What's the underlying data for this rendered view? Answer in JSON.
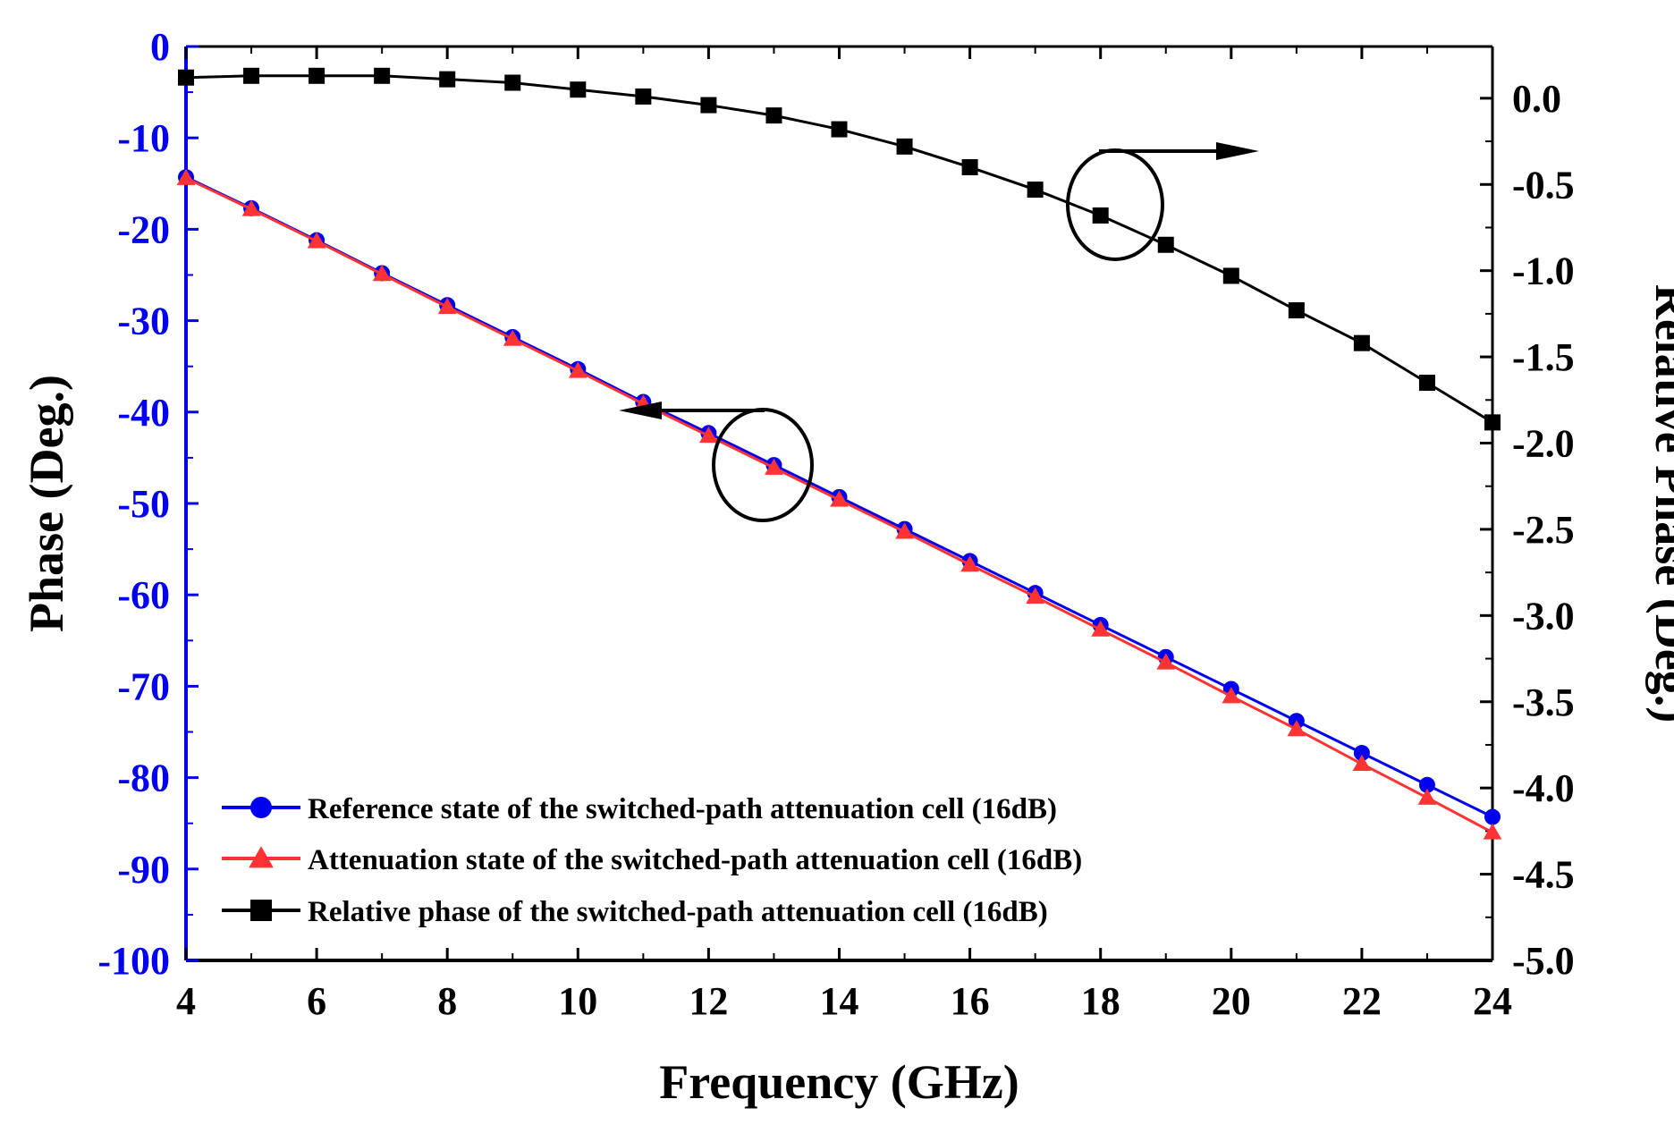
{
  "chart_data": {
    "type": "line",
    "title": "",
    "xlabel": "Frequency (GHz)",
    "ylabel_left": "Phase (Deg.)",
    "ylabel_right": "Relative Phase (Deg.)",
    "xlim": [
      4,
      24
    ],
    "ylim_left": [
      -100,
      0
    ],
    "ylim_right": [
      -5.0,
      0.3
    ],
    "x_ticks": [
      "4",
      "6",
      "8",
      "10",
      "12",
      "14",
      "16",
      "18",
      "20",
      "22",
      "24"
    ],
    "y_left_ticks": [
      "0",
      "-10",
      "-20",
      "-30",
      "-40",
      "-50",
      "-60",
      "-70",
      "-80",
      "-90",
      "-100"
    ],
    "y_right_ticks": [
      "0.0",
      "-0.5",
      "-1.0",
      "-1.5",
      "-2.0",
      "-2.5",
      "-3.0",
      "-3.5",
      "-4.0",
      "-4.5",
      "-5.0"
    ],
    "grid": false,
    "legend_position": "bottom-left",
    "x": [
      4,
      5,
      6,
      7,
      8,
      9,
      10,
      11,
      12,
      13,
      14,
      15,
      16,
      17,
      18,
      19,
      20,
      21,
      22,
      23,
      24
    ],
    "series": [
      {
        "name": "Reference state of the switched-path attenuation cell (16dB)",
        "axis": "left",
        "color": "#0000ee",
        "marker": "circle",
        "values": [
          -14.3,
          -17.7,
          -21.2,
          -24.8,
          -28.3,
          -31.8,
          -35.3,
          -38.9,
          -42.3,
          -45.8,
          -49.3,
          -52.8,
          -56.3,
          -59.8,
          -63.3,
          -66.8,
          -70.3,
          -73.8,
          -77.3,
          -80.8,
          -84.3
        ]
      },
      {
        "name": "Attenuation state of the switched-path attenuation cell (16dB)",
        "axis": "left",
        "color": "#ff3333",
        "marker": "triangle",
        "values": [
          -14.4,
          -17.8,
          -21.3,
          -24.9,
          -28.5,
          -32.0,
          -35.5,
          -39.1,
          -42.6,
          -46.1,
          -49.6,
          -53.1,
          -56.7,
          -60.2,
          -63.8,
          -67.4,
          -71.1,
          -74.7,
          -78.5,
          -82.2,
          -86.0
        ]
      },
      {
        "name": "Relative phase of the switched-path attenuation cell (16dB)",
        "axis": "right",
        "color": "#000000",
        "marker": "square",
        "values": [
          0.12,
          0.13,
          0.13,
          0.13,
          0.11,
          0.09,
          0.05,
          0.01,
          -0.04,
          -0.1,
          -0.18,
          -0.28,
          -0.4,
          -0.53,
          -0.68,
          -0.85,
          -1.03,
          -1.23,
          -1.42,
          -1.65,
          -1.88
        ]
      }
    ]
  }
}
